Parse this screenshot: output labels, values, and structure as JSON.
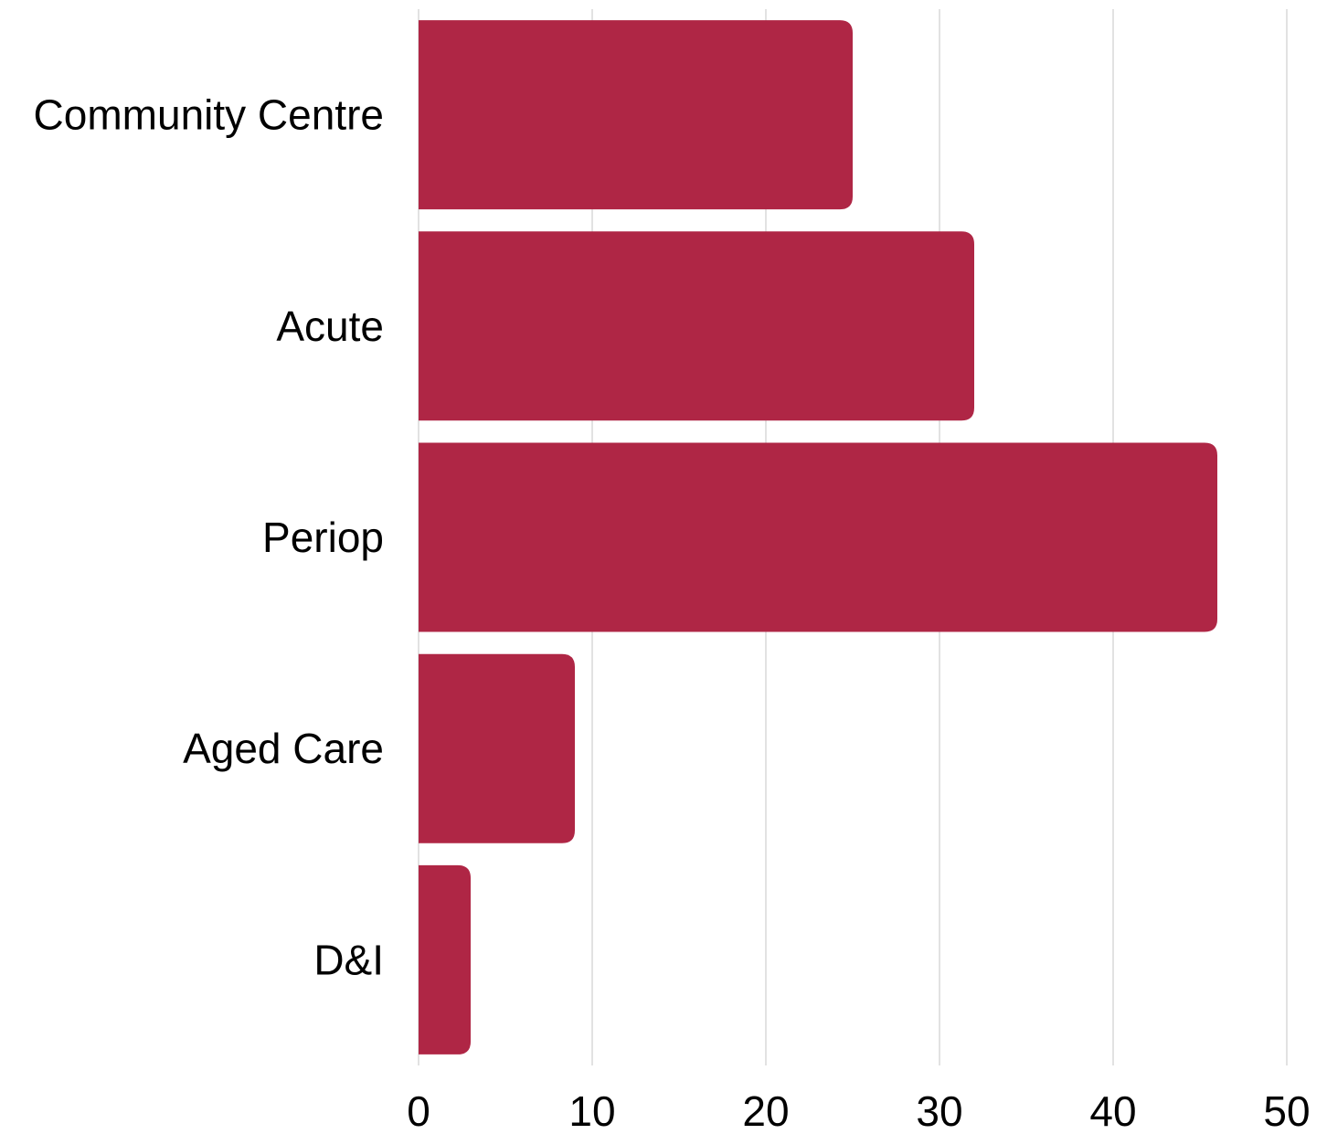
{
  "chart_data": {
    "type": "bar",
    "orientation": "horizontal",
    "title": "",
    "xlabel": "",
    "ylabel": "",
    "categories": [
      "Community Centre",
      "Acute",
      "Periop",
      "Aged Care",
      "D&I"
    ],
    "values": [
      25,
      32,
      46,
      9,
      3
    ],
    "xlim": [
      0,
      50
    ],
    "xticks": [
      "0",
      "10",
      "20",
      "30",
      "40",
      "50"
    ],
    "grid": true,
    "legend": "none",
    "bar_color": "#af2645",
    "grid_color": "#d9d9d9"
  }
}
